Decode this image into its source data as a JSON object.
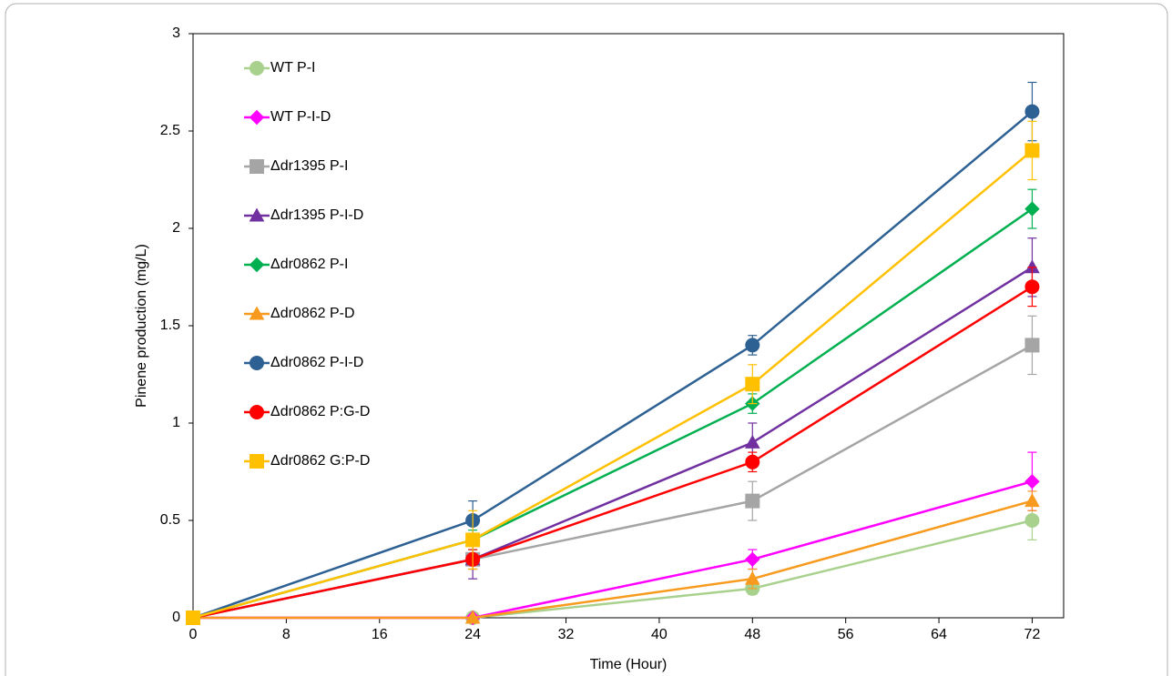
{
  "chart_data": {
    "type": "line",
    "xlabel": "Time (Hour)",
    "ylabel": "Pinene production (mg/L)",
    "x": [
      0,
      24,
      48,
      72
    ],
    "xlim": [
      0,
      74.7
    ],
    "xticks": [
      0,
      8,
      16,
      24,
      32,
      40,
      48,
      56,
      64,
      72
    ],
    "ylim": [
      0,
      3
    ],
    "yticks": [
      0,
      0.5,
      1,
      1.5,
      2,
      2.5,
      3
    ],
    "grid": false,
    "legend": "upper left",
    "error_bars": true,
    "series": [
      {
        "name": "WT P-I",
        "color": "#a9d18e",
        "marker": "circle",
        "values": [
          0,
          0,
          0.15,
          0.5
        ],
        "errors": [
          0,
          0,
          0.03,
          0.1
        ]
      },
      {
        "name": "WT P-I-D",
        "color": "#ff00ff",
        "marker": "diamond",
        "values": [
          0,
          0,
          0.3,
          0.7
        ],
        "errors": [
          0,
          0,
          0.05,
          0.15
        ]
      },
      {
        "name": "Δdr1395 P-I",
        "color": "#a5a5a5",
        "marker": "square",
        "values": [
          0,
          0.3,
          0.6,
          1.4
        ],
        "errors": [
          0,
          0.05,
          0.1,
          0.15
        ]
      },
      {
        "name": "Δdr1395 P-I-D",
        "color": "#7030a0",
        "marker": "triangle",
        "values": [
          0,
          0.3,
          0.9,
          1.8
        ],
        "errors": [
          0,
          0.1,
          0.1,
          0.15
        ]
      },
      {
        "name": "Δdr0862 P-I",
        "color": "#00b050",
        "marker": "diamond",
        "values": [
          0,
          0.4,
          1.1,
          2.1
        ],
        "errors": [
          0,
          0.05,
          0.05,
          0.1
        ]
      },
      {
        "name": "Δdr0862 P-D",
        "color": "#f79a1e",
        "marker": "triangle",
        "values": [
          0,
          0,
          0.2,
          0.6
        ],
        "errors": [
          0,
          0,
          0.05,
          0.05
        ]
      },
      {
        "name": "Δdr0862 P-I-D",
        "color": "#2e6193",
        "marker": "circle",
        "values": [
          0,
          0.5,
          1.4,
          2.6
        ],
        "errors": [
          0,
          0.1,
          0.05,
          0.15
        ]
      },
      {
        "name": "Δdr0862 P:G-D",
        "color": "#ff0000",
        "marker": "circle",
        "values": [
          0,
          0.3,
          0.8,
          1.7
        ],
        "errors": [
          0,
          0.05,
          0.05,
          0.1
        ]
      },
      {
        "name": "Δdr0862 G:P-D",
        "color": "#ffc000",
        "marker": "square",
        "values": [
          0,
          0.4,
          1.2,
          2.4
        ],
        "errors": [
          0,
          0.15,
          0.1,
          0.15
        ]
      }
    ]
  }
}
